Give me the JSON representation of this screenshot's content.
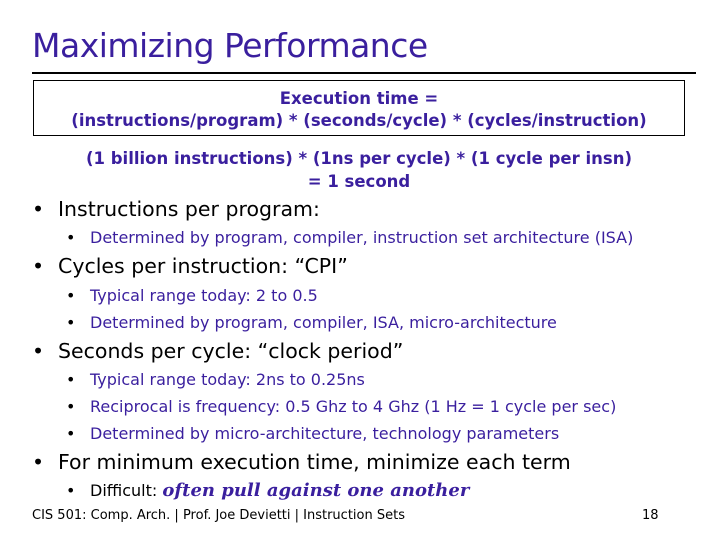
{
  "title": "Maximizing Performance",
  "formula": {
    "line1": "Execution time =",
    "line2": "(instructions/program) * (seconds/cycle) * (cycles/instruction)"
  },
  "example": {
    "line1": "(1 billion instructions) * (1ns per cycle) * (1 cycle per insn)",
    "line2": "= 1 second"
  },
  "bullet_char": "•",
  "bullets": {
    "b1": {
      "text": "Instructions per program:",
      "subs": [
        "Determined by program, compiler, instruction set architecture (ISA)"
      ]
    },
    "b2": {
      "text": "Cycles per instruction: “CPI”",
      "subs": [
        "Typical range today: 2 to 0.5",
        "Determined by program, compiler, ISA, micro-architecture"
      ]
    },
    "b3": {
      "text": "Seconds per cycle: “clock period”",
      "subs": [
        "Typical range today: 2ns to 0.25ns",
        "Reciprocal is frequency: 0.5 Ghz to 4 Ghz (1 Hz = 1 cycle per sec)",
        "Determined by micro-architecture, technology parameters"
      ]
    },
    "b4": {
      "text": "For minimum execution time, minimize each term",
      "sub_prefix": "Difficult: ",
      "sub_emphasis": "often pull against one another"
    }
  },
  "footer": {
    "text": "CIS 501: Comp. Arch.  |  Prof. Joe Devietti  |  Instruction Sets",
    "page": "18"
  }
}
